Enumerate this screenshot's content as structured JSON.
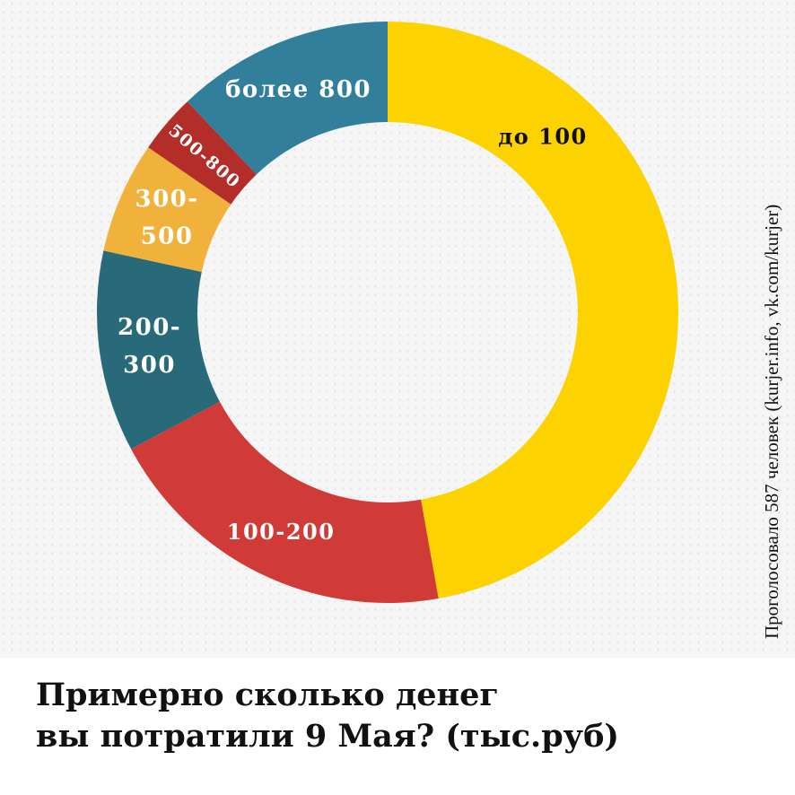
{
  "chart_data": {
    "type": "pie",
    "donut": true,
    "title": "Примерно сколько денег вы потратили 9 Мая? (тыс.руб)",
    "title_lines": [
      "Примерно сколько денег",
      "вы потратили 9 Мая? (тыс.руб)"
    ],
    "note": "Проголосовало 587 человек (kurjer.info, vk.com/kurjer)",
    "legend": "none",
    "slices": [
      {
        "label": "до 100",
        "label_lines": [
          "до 100"
        ],
        "value": 47.2,
        "color": "#fcd201",
        "text_color": "#111111"
      },
      {
        "label": "100-200",
        "label_lines": [
          "100-200"
        ],
        "value": 20.0,
        "color": "#d03a37",
        "text_color": "#ffffff"
      },
      {
        "label": "200-300",
        "label_lines": [
          "200-",
          "300"
        ],
        "value": 11.2,
        "color": "#296a7a",
        "text_color": "#ffffff"
      },
      {
        "label": "300-500",
        "label_lines": [
          "300-",
          "500"
        ],
        "value": 6.2,
        "color": "#f0b23b",
        "text_color": "#ffffff"
      },
      {
        "label": "500-800",
        "label_lines": [
          "500-800"
        ],
        "value": 3.3,
        "color": "#b32e28",
        "text_color": "#ffffff"
      },
      {
        "label": "более 800",
        "label_lines": [
          "более 800"
        ],
        "value": 12.1,
        "color": "#317f9a",
        "text_color": "#ffffff"
      }
    ]
  }
}
